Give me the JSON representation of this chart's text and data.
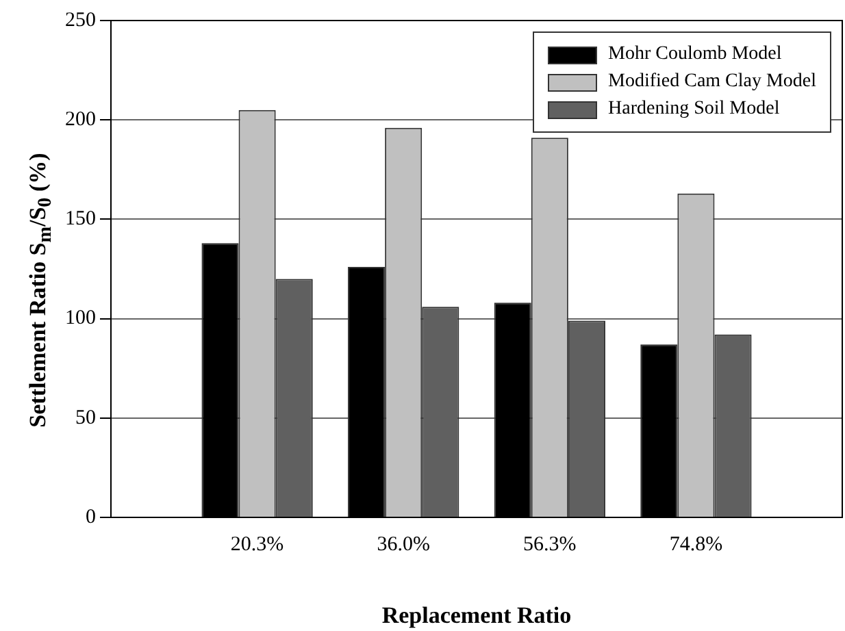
{
  "chart_data": {
    "type": "bar",
    "xlabel": "Replacement Ratio",
    "ylabel": "Settlement Ratio  S$_{m}$/S$_{0}$ (%)",
    "categories": [
      "20.3%",
      "36.0%",
      "56.3%",
      "74.8%"
    ],
    "series": [
      {
        "name": "Mohr Coulomb Model",
        "color": "#000000",
        "values": [
          138,
          126,
          108,
          87
        ]
      },
      {
        "name": "Modified Cam Clay Model",
        "color": "#c0c0c0",
        "values": [
          205,
          196,
          191,
          163
        ]
      },
      {
        "name": "Hardening Soil Model",
        "color": "#606060",
        "values": [
          120,
          106,
          99,
          92
        ]
      }
    ],
    "ylim": [
      0,
      250
    ],
    "yticks": [
      0,
      50,
      100,
      150,
      200,
      250
    ],
    "grid": "y",
    "legend": "top right"
  }
}
